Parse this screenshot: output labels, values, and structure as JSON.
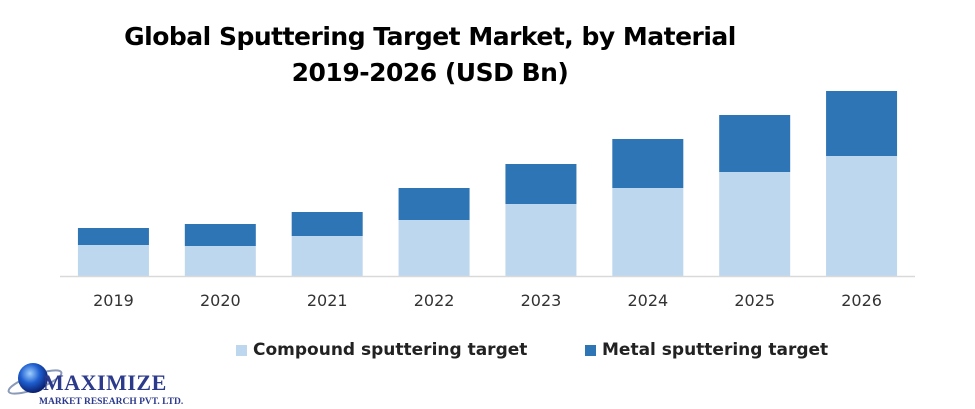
{
  "chart_data": {
    "type": "bar",
    "stacked": true,
    "title": "Global Sputtering Target Market, by Material",
    "subtitle": "2019-2026 (USD Bn)",
    "categories": [
      "2019",
      "2020",
      "2021",
      "2022",
      "2023",
      "2024",
      "2025",
      "2026"
    ],
    "series": [
      {
        "name": "Compound sputtering target",
        "color": "#bdd7ee",
        "values": [
          31,
          30,
          40,
          56,
          72,
          88,
          104,
          120
        ]
      },
      {
        "name": "Metal sputtering target",
        "color": "#2e75b6",
        "values": [
          17,
          22,
          24,
          32,
          40,
          49,
          57,
          65
        ]
      }
    ],
    "ylim": [
      0,
      200
    ],
    "y_axis_visible": false,
    "grid": false,
    "legend": "bottom"
  },
  "logo": {
    "name": "MAXIMIZE",
    "tagline": "MARKET RESEARCH PVT. LTD."
  }
}
